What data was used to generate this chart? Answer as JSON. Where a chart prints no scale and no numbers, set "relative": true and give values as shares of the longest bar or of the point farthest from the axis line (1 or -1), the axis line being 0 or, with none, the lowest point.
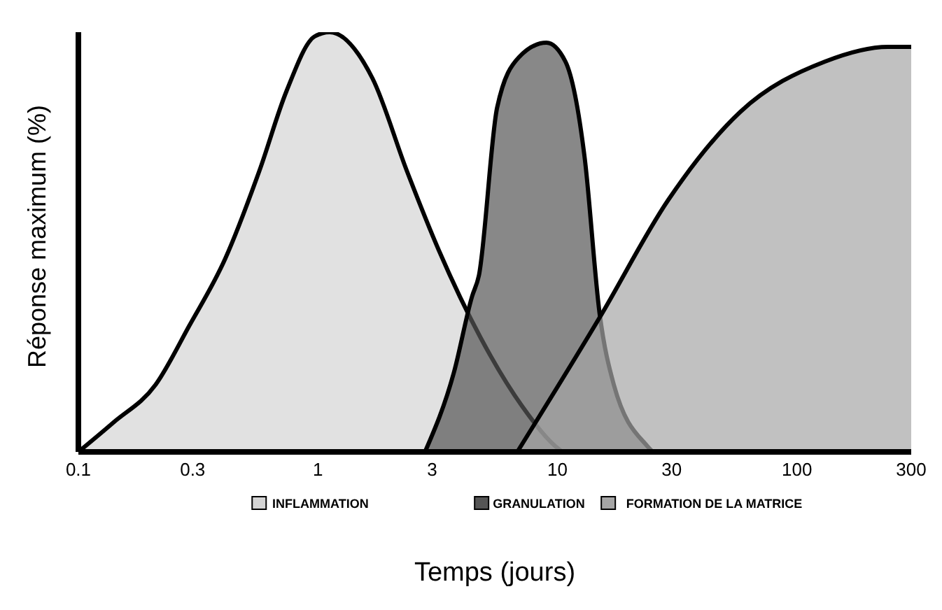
{
  "chart_data": {
    "type": "area",
    "xlabel": "Temps (jours)",
    "ylabel": "Réponse maximum (%)",
    "relative": true,
    "legend": "bottom",
    "log": "x",
    "xlim": [
      0.1,
      300
    ],
    "xticks": [
      0.1,
      0.3,
      1,
      3,
      10,
      30,
      100,
      300
    ],
    "series": [
      {
        "name": "INFLAMMATION",
        "color": "#d4d4d4",
        "x": [
          0.1,
          0.14,
          0.21,
          0.29,
          0.41,
          0.57,
          0.74,
          0.97,
          1.12,
          1.69,
          2.35,
          3.2,
          4.8,
          7.1,
          9.7,
          10.5
        ],
        "values": [
          0,
          0.07,
          0.16,
          0.3,
          0.46,
          0.67,
          0.86,
          0.99,
          1,
          0.89,
          0.67,
          0.48,
          0.27,
          0.11,
          0.016,
          0
        ]
      },
      {
        "name": "GRANULATION",
        "color": "#555555",
        "x": [
          2.8,
          3.7,
          4.4,
          4.7,
          5.6,
          6.9,
          9,
          10.8,
          13,
          15,
          17.2,
          23.8,
          25
        ],
        "values": [
          0,
          0.19,
          0.37,
          0.42,
          0.82,
          0.94,
          0.975,
          0.93,
          0.7,
          0.33,
          0.16,
          0.013,
          0
        ]
      },
      {
        "name": "FORMATION DE LA MATRICE",
        "color": "#a6a6a6",
        "x": [
          6.8,
          15,
          29,
          58,
          131,
          240,
          300
        ],
        "values": [
          0,
          0.32,
          0.6,
          0.81,
          0.93,
          0.965,
          0.965
        ]
      }
    ]
  }
}
